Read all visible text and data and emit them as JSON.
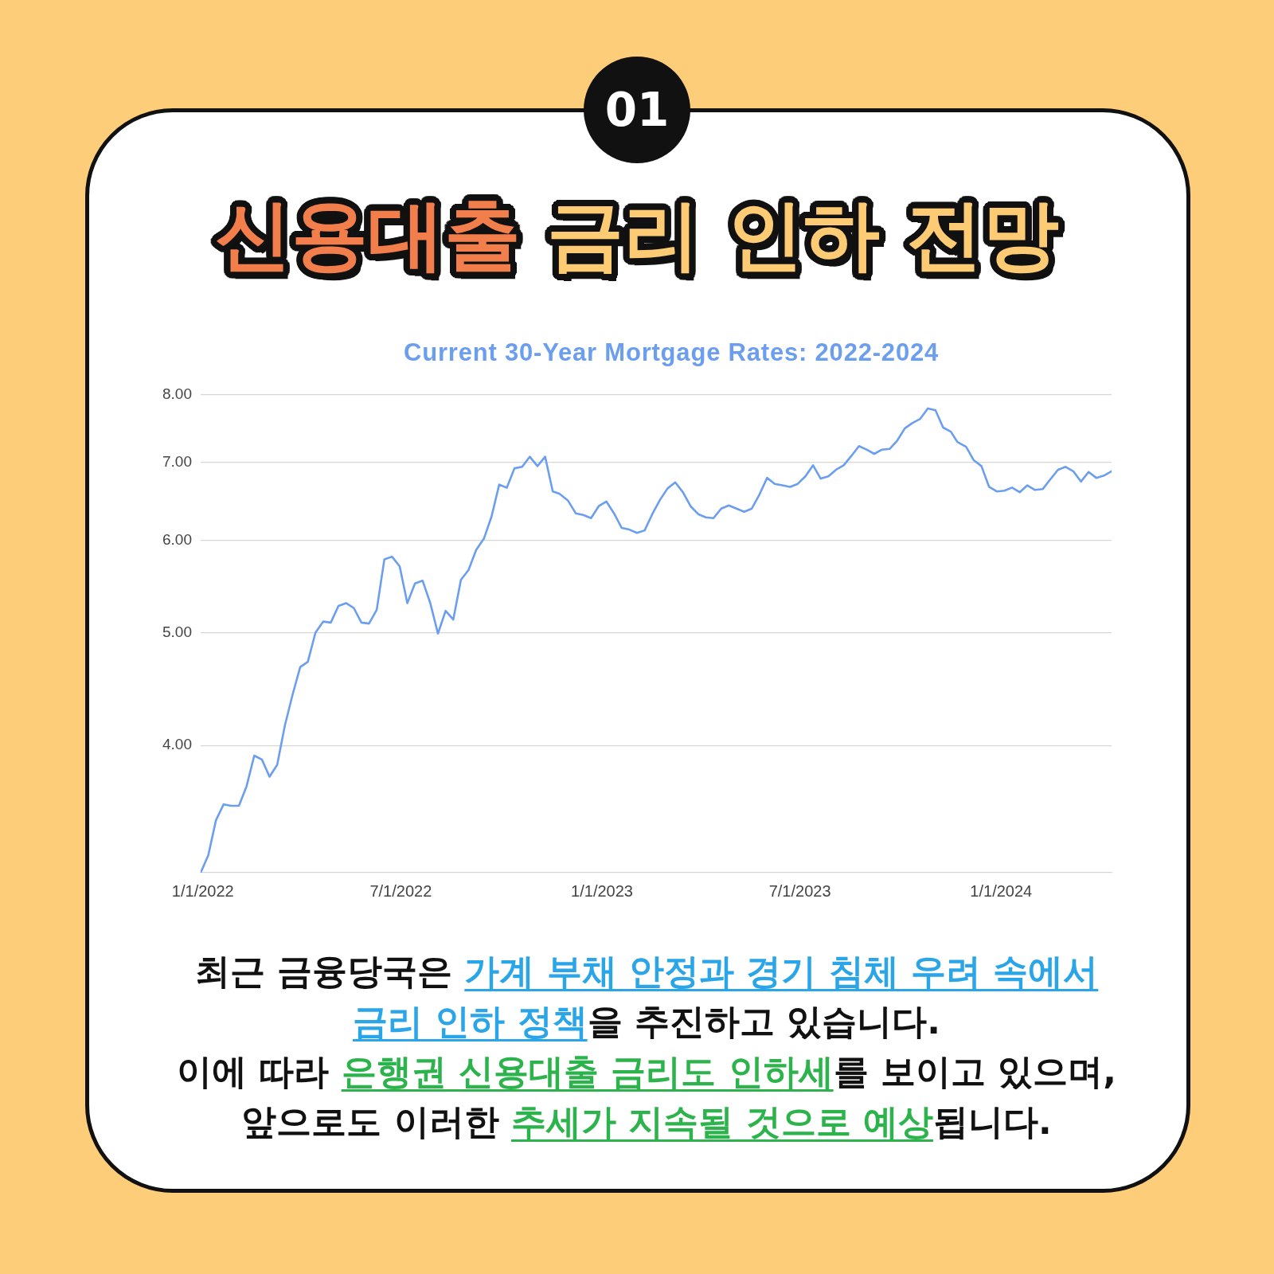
{
  "chart_data": {
    "type": "line",
    "title": "신용대출 금리 인하 전망",
    "subtitle": "Current 30-Year Mortgage Rates: 2022-2024",
    "annotations": [
      "01",
      "최근 금융당국은 ",
      "가계 부채 안정과 경기 침체 우려 속에서",
      "금리 인하 정책",
      "을 추진하고 있습니다.",
      "이에 따라 ",
      "은행권 신용대출 금리도 인하세",
      "를 보이고 있으며,",
      "앞으로도 이러한 ",
      "추세가 지속될 것으로 예상",
      "됩니다."
    ],
    "x": [
      "2021-12-30",
      "2022-01-06",
      "2022-01-13",
      "2022-01-20",
      "2022-01-27",
      "2022-02-03",
      "2022-02-10",
      "2022-02-17",
      "2022-02-24",
      "2022-03-03",
      "2022-03-10",
      "2022-03-17",
      "2022-03-24",
      "2022-03-31",
      "2022-04-07",
      "2022-04-14",
      "2022-04-21",
      "2022-04-28",
      "2022-05-05",
      "2022-05-12",
      "2022-05-19",
      "2022-05-26",
      "2022-06-02",
      "2022-06-09",
      "2022-06-16",
      "2022-06-23",
      "2022-06-30",
      "2022-07-07",
      "2022-07-14",
      "2022-07-21",
      "2022-07-28",
      "2022-08-04",
      "2022-08-11",
      "2022-08-18",
      "2022-08-25",
      "2022-09-01",
      "2022-09-08",
      "2022-09-15",
      "2022-09-22",
      "2022-09-29",
      "2022-10-06",
      "2022-10-13",
      "2022-10-20",
      "2022-10-27",
      "2022-11-03",
      "2022-11-10",
      "2022-11-17",
      "2022-11-23",
      "2022-12-01",
      "2022-12-08",
      "2022-12-15",
      "2022-12-22",
      "2022-12-29",
      "2023-01-05",
      "2023-01-12",
      "2023-01-19",
      "2023-01-26",
      "2023-02-02",
      "2023-02-09",
      "2023-02-16",
      "2023-02-23",
      "2023-03-02",
      "2023-03-09",
      "2023-03-16",
      "2023-03-23",
      "2023-03-30",
      "2023-04-06",
      "2023-04-13",
      "2023-04-20",
      "2023-04-27",
      "2023-05-04",
      "2023-05-11",
      "2023-05-18",
      "2023-05-25",
      "2023-06-01",
      "2023-06-08",
      "2023-06-15",
      "2023-06-22",
      "2023-06-29",
      "2023-07-06",
      "2023-07-13",
      "2023-07-20",
      "2023-07-27",
      "2023-08-03",
      "2023-08-10",
      "2023-08-17",
      "2023-08-24",
      "2023-08-31",
      "2023-09-07",
      "2023-09-14",
      "2023-09-21",
      "2023-09-28",
      "2023-10-05",
      "2023-10-12",
      "2023-10-19",
      "2023-10-26",
      "2023-11-02",
      "2023-11-09",
      "2023-11-16",
      "2023-11-22",
      "2023-11-30",
      "2023-12-07",
      "2023-12-14",
      "2023-12-21",
      "2023-12-28",
      "2024-01-04",
      "2024-01-11",
      "2024-01-18",
      "2024-01-25",
      "2024-02-01",
      "2024-02-08",
      "2024-02-15",
      "2024-02-22",
      "2024-02-29",
      "2024-03-07",
      "2024-03-14",
      "2024-03-21",
      "2024-03-28",
      "2024-04-04",
      "2024-04-11"
    ],
    "series": [
      {
        "color": "#6c9ef0",
        "values": [
          3.11,
          3.22,
          3.45,
          3.56,
          3.55,
          3.55,
          3.69,
          3.92,
          3.89,
          3.76,
          3.85,
          4.16,
          4.42,
          4.67,
          4.72,
          5.0,
          5.11,
          5.1,
          5.27,
          5.3,
          5.25,
          5.1,
          5.09,
          5.23,
          5.78,
          5.81,
          5.7,
          5.3,
          5.51,
          5.54,
          5.3,
          4.99,
          5.22,
          5.13,
          5.55,
          5.66,
          5.89,
          6.02,
          6.29,
          6.7,
          6.66,
          6.92,
          6.94,
          7.08,
          6.95,
          7.08,
          6.61,
          6.58,
          6.49,
          6.33,
          6.31,
          6.27,
          6.42,
          6.48,
          6.33,
          6.15,
          6.13,
          6.09,
          6.12,
          6.32,
          6.5,
          6.65,
          6.73,
          6.6,
          6.42,
          6.32,
          6.28,
          6.27,
          6.39,
          6.43,
          6.39,
          6.35,
          6.39,
          6.57,
          6.79,
          6.71,
          6.69,
          6.67,
          6.71,
          6.81,
          6.96,
          6.78,
          6.81,
          6.9,
          6.96,
          7.09,
          7.23,
          7.18,
          7.12,
          7.18,
          7.19,
          7.31,
          7.49,
          7.57,
          7.63,
          7.79,
          7.76,
          7.5,
          7.44,
          7.29,
          7.22,
          7.03,
          6.95,
          6.67,
          6.61,
          6.62,
          6.66,
          6.6,
          6.69,
          6.63,
          6.64,
          6.77,
          6.9,
          6.94,
          6.88,
          6.74,
          6.87,
          6.79,
          6.82,
          6.88
        ]
      }
    ],
    "xlim": [
      "2021-12-30",
      "2024-04-11"
    ],
    "xticks": [
      {
        "value": "2022-01-01",
        "label": "1/1/2022"
      },
      {
        "value": "2022-07-01",
        "label": "7/1/2022"
      },
      {
        "value": "2023-01-01",
        "label": "1/1/2023"
      },
      {
        "value": "2023-07-01",
        "label": "7/1/2023"
      },
      {
        "value": "2024-01-01",
        "label": "1/1/2024"
      }
    ],
    "ylim": [
      3.11,
      8
    ],
    "yticks": [
      {
        "value": 4,
        "label": "4.00"
      },
      {
        "value": 5,
        "label": "5.00"
      },
      {
        "value": 6,
        "label": "6.00"
      },
      {
        "value": 7,
        "label": "7.00"
      },
      {
        "value": 8,
        "label": "8.00"
      }
    ],
    "log": true,
    "grid": "y",
    "marker": "none",
    "line_style": "solid"
  }
}
